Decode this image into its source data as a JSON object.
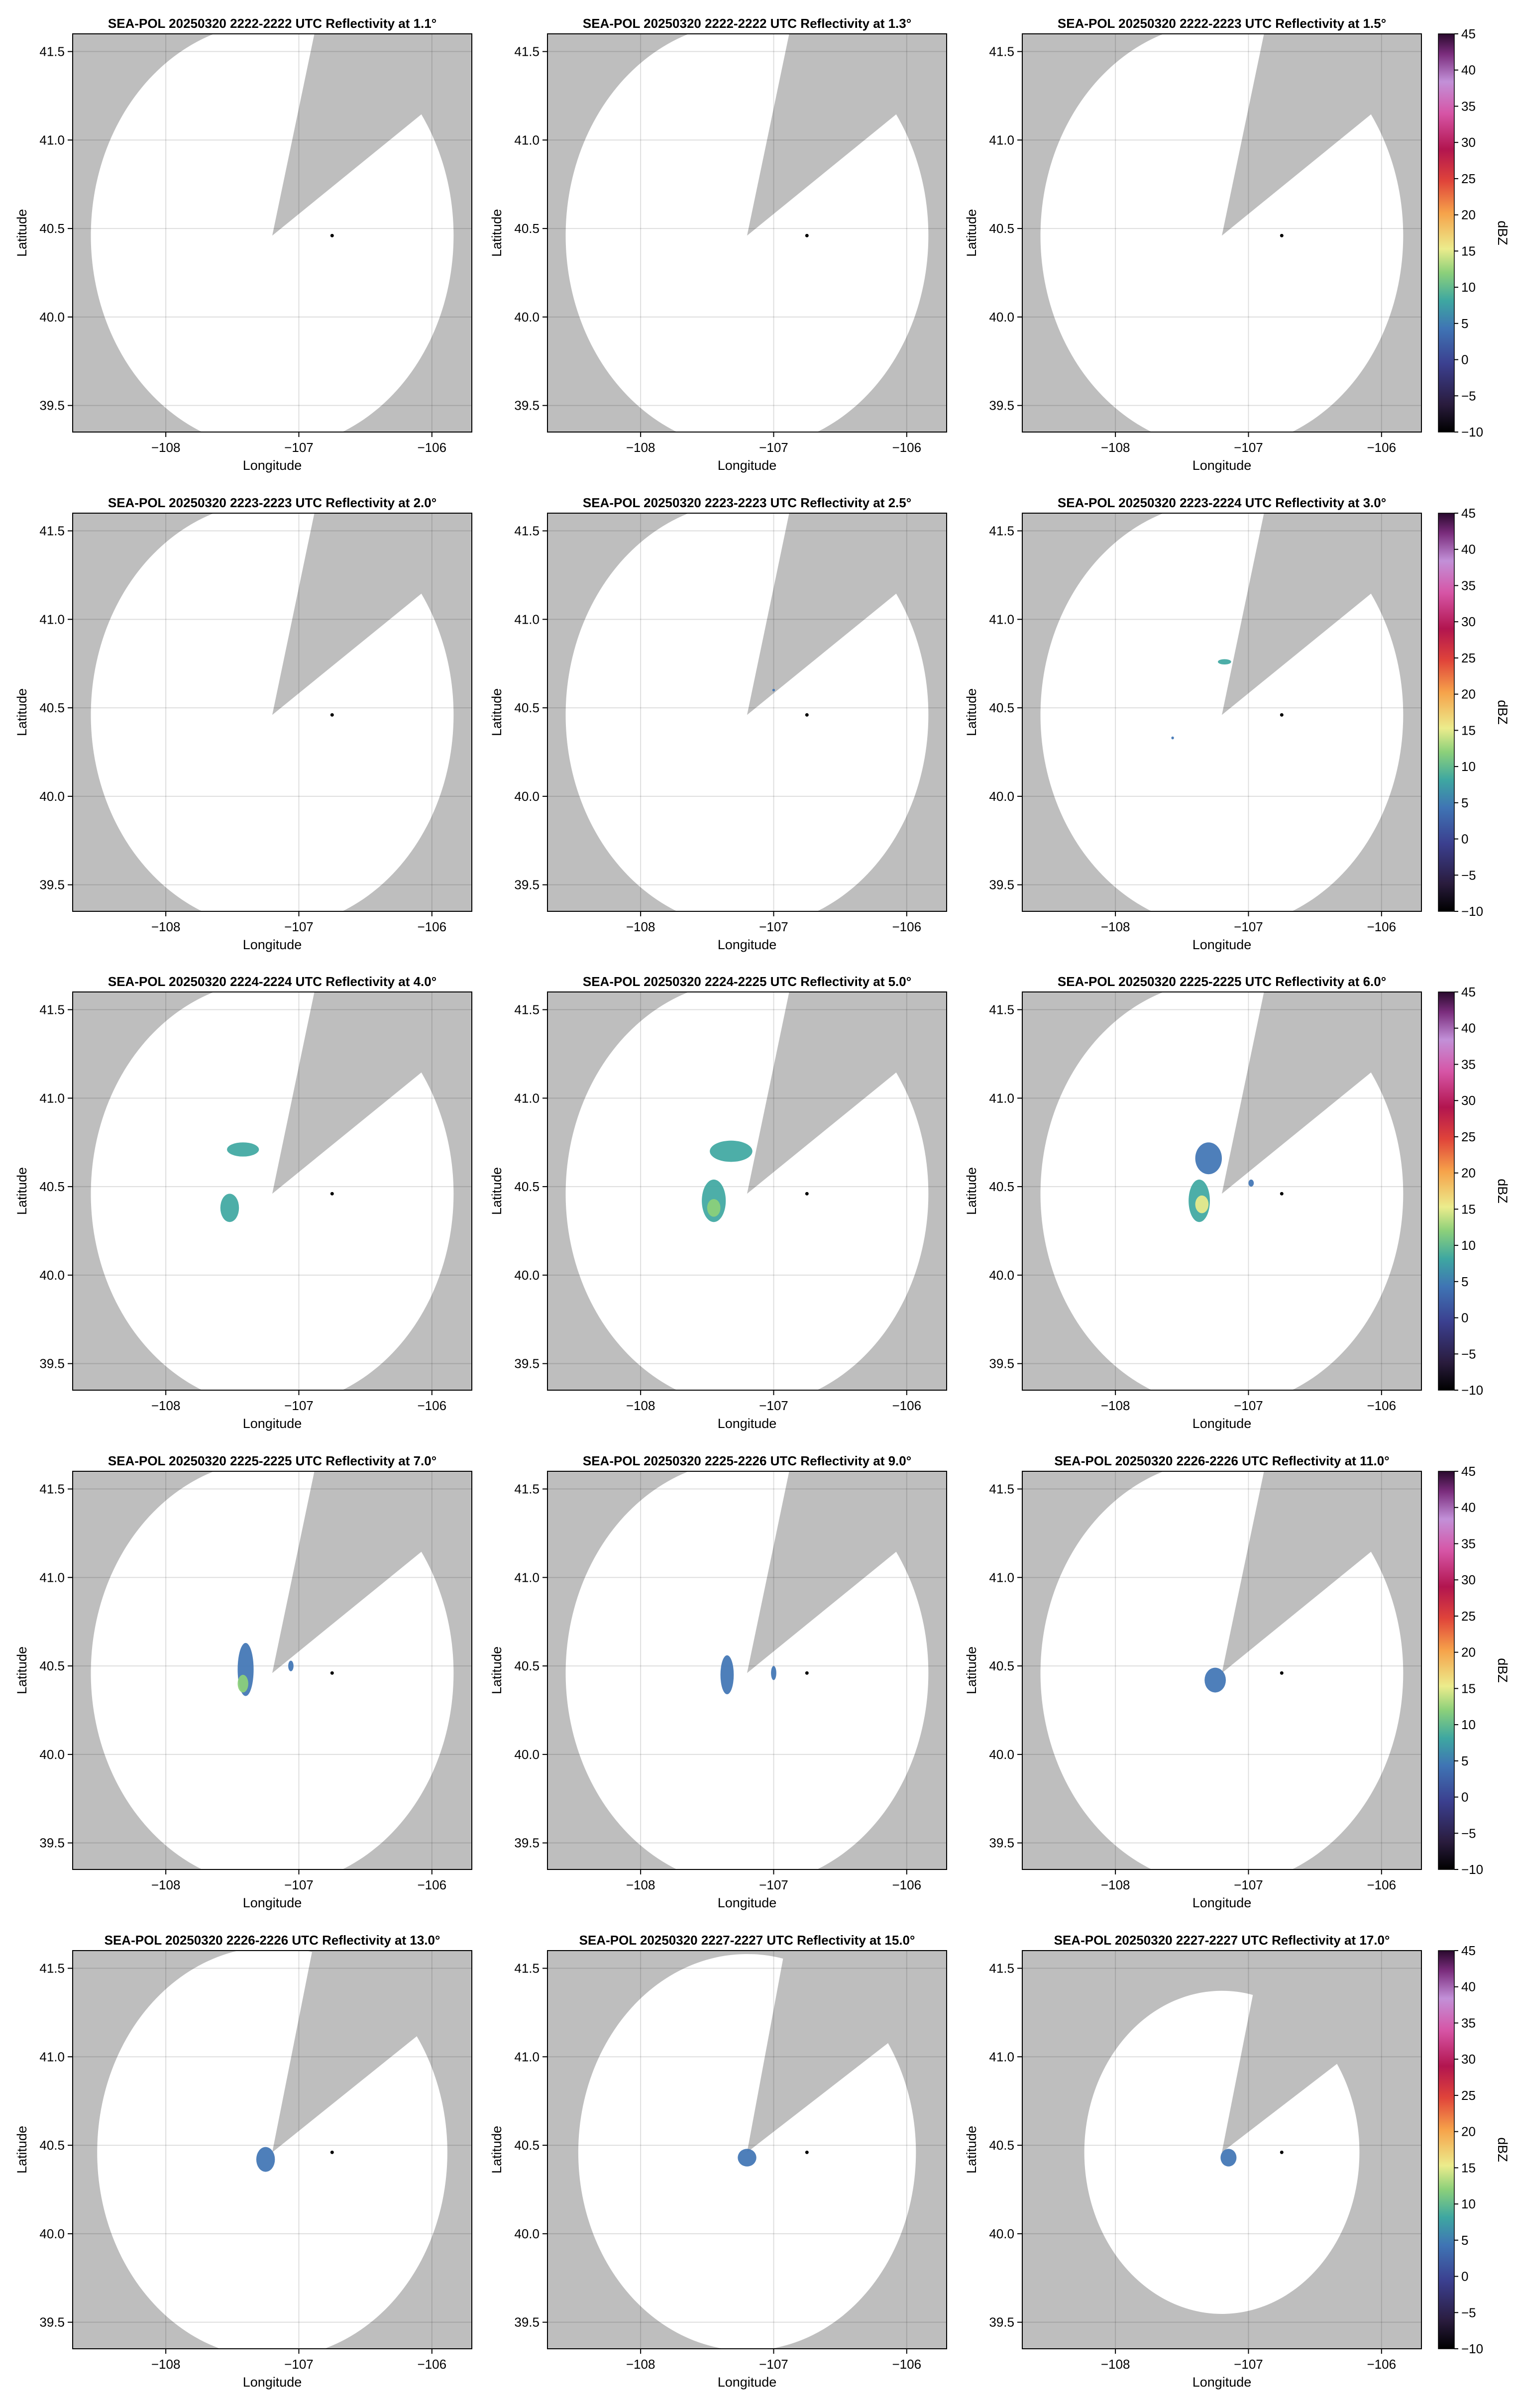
{
  "figure": {
    "xlabel": "Longitude",
    "ylabel": "Latitude",
    "xlim": [
      -108.7,
      -105.7
    ],
    "ylim": [
      39.35,
      41.6
    ],
    "x_ticks": [
      -108,
      -107,
      -106
    ],
    "y_ticks": [
      39.5,
      40.0,
      40.5,
      41.0,
      41.5
    ],
    "x_tick_labels": [
      "−108",
      "−107",
      "−106"
    ],
    "y_tick_labels": [
      "39.5",
      "40.0",
      "40.5",
      "41.0",
      "41.5"
    ],
    "grid": true,
    "background_color": "#bebebe",
    "coverage_color": "#ffffff",
    "station_marker": {
      "lon": -106.75,
      "lat": 40.46
    }
  },
  "colorbar": {
    "label": "dBZ",
    "min": -10,
    "max": 45,
    "ticks": [
      -10,
      -5,
      0,
      5,
      10,
      15,
      20,
      25,
      30,
      35,
      40,
      45
    ],
    "tick_labels": [
      "−10",
      "−5",
      "0",
      "5",
      "10",
      "15",
      "20",
      "25",
      "30",
      "35",
      "40",
      "45"
    ],
    "colors": [
      "#000000",
      "#2a1c3e",
      "#3b3f8f",
      "#3f74b4",
      "#3ea7a1",
      "#8cd07a",
      "#ecec8c",
      "#f6a24a",
      "#e0443a",
      "#b2154f",
      "#d655a6",
      "#c290d8",
      "#7a2c7c",
      "#2a0a2e"
    ]
  },
  "chart_data": [
    {
      "type": "heatmap",
      "title": "SEA-POL 20250320 2222-2222 UTC Reflectivity at 1.1°",
      "coverage": {
        "center": [
          -107.2,
          40.46
        ],
        "range_deg": 1.45,
        "blocked_sector": [
          [
            -106.9,
            41.54
          ],
          [
            -106.12,
            41.12
          ]
        ]
      },
      "echoes": []
    },
    {
      "type": "heatmap",
      "title": "SEA-POL 20250320 2222-2222 UTC Reflectivity at 1.3°",
      "coverage": {
        "center": [
          -107.2,
          40.46
        ],
        "range_deg": 1.45,
        "blocked_sector": [
          [
            -106.9,
            41.54
          ],
          [
            -106.12,
            41.12
          ]
        ]
      },
      "echoes": []
    },
    {
      "type": "heatmap",
      "title": "SEA-POL 20250320 2222-2223 UTC Reflectivity at 1.5°",
      "coverage": {
        "center": [
          -107.2,
          40.46
        ],
        "range_deg": 1.45,
        "blocked_sector": [
          [
            -106.9,
            41.54
          ],
          [
            -106.12,
            41.12
          ]
        ]
      },
      "echoes": []
    },
    {
      "type": "heatmap",
      "title": "SEA-POL 20250320 2223-2223 UTC Reflectivity at 2.0°",
      "coverage": {
        "center": [
          -107.2,
          40.46
        ],
        "range_deg": 1.45,
        "blocked_sector": [
          [
            -106.9,
            41.54
          ],
          [
            -106.12,
            41.12
          ]
        ]
      },
      "echoes": []
    },
    {
      "type": "heatmap",
      "title": "SEA-POL 20250320 2223-2223 UTC Reflectivity at 2.5°",
      "coverage": {
        "center": [
          -107.2,
          40.46
        ],
        "range_deg": 1.45,
        "blocked_sector": [
          [
            -106.9,
            41.54
          ],
          [
            -106.12,
            41.12
          ]
        ]
      },
      "echoes": [
        {
          "lon": -107.0,
          "lat": 40.6,
          "rx": 0.01,
          "ry": 0.006,
          "dbz": 2
        }
      ]
    },
    {
      "type": "heatmap",
      "title": "SEA-POL 20250320 2223-2224 UTC Reflectivity at 3.0°",
      "coverage": {
        "center": [
          -107.2,
          40.46
        ],
        "range_deg": 1.45,
        "blocked_sector": [
          [
            -106.9,
            41.54
          ],
          [
            -106.12,
            41.12
          ]
        ]
      },
      "echoes": [
        {
          "lon": -107.18,
          "lat": 40.76,
          "rx": 0.05,
          "ry": 0.015,
          "dbz": 5
        },
        {
          "lon": -107.57,
          "lat": 40.33,
          "rx": 0.01,
          "ry": 0.008,
          "dbz": 2
        }
      ]
    },
    {
      "type": "heatmap",
      "title": "SEA-POL 20250320 2224-2224 UTC Reflectivity at 4.0°",
      "coverage": {
        "center": [
          -107.2,
          40.46
        ],
        "range_deg": 1.45,
        "blocked_sector": [
          [
            -106.9,
            41.54
          ],
          [
            -106.12,
            41.12
          ]
        ]
      },
      "echoes": [
        {
          "lon": -107.42,
          "lat": 40.71,
          "rx": 0.12,
          "ry": 0.04,
          "dbz": 7
        },
        {
          "lon": -107.52,
          "lat": 40.38,
          "rx": 0.07,
          "ry": 0.08,
          "dbz": 6
        }
      ]
    },
    {
      "type": "heatmap",
      "title": "SEA-POL 20250320 2224-2225 UTC Reflectivity at 5.0°",
      "coverage": {
        "center": [
          -107.2,
          40.46
        ],
        "range_deg": 1.45,
        "blocked_sector": [
          [
            -106.9,
            41.54
          ],
          [
            -106.12,
            41.12
          ]
        ]
      },
      "echoes": [
        {
          "lon": -107.32,
          "lat": 40.7,
          "rx": 0.16,
          "ry": 0.06,
          "dbz": 5
        },
        {
          "lon": -107.45,
          "lat": 40.42,
          "rx": 0.09,
          "ry": 0.12,
          "dbz": 6
        },
        {
          "lon": -107.45,
          "lat": 40.38,
          "rx": 0.05,
          "ry": 0.05,
          "dbz": 13
        }
      ]
    },
    {
      "type": "heatmap",
      "title": "SEA-POL 20250320 2225-2225 UTC Reflectivity at 6.0°",
      "coverage": {
        "center": [
          -107.2,
          40.46
        ],
        "range_deg": 1.45,
        "blocked_sector": [
          [
            -106.9,
            41.54
          ],
          [
            -106.12,
            41.12
          ]
        ]
      },
      "echoes": [
        {
          "lon": -107.3,
          "lat": 40.66,
          "rx": 0.1,
          "ry": 0.09,
          "dbz": 3
        },
        {
          "lon": -107.37,
          "lat": 40.42,
          "rx": 0.08,
          "ry": 0.12,
          "dbz": 6
        },
        {
          "lon": -107.35,
          "lat": 40.4,
          "rx": 0.05,
          "ry": 0.05,
          "dbz": 14
        },
        {
          "lon": -106.98,
          "lat": 40.52,
          "rx": 0.02,
          "ry": 0.02,
          "dbz": 2
        }
      ]
    },
    {
      "type": "heatmap",
      "title": "SEA-POL 20250320 2225-2225 UTC Reflectivity at 7.0°",
      "coverage": {
        "center": [
          -107.2,
          40.46
        ],
        "range_deg": 1.45,
        "blocked_sector": [
          [
            -106.9,
            41.54
          ],
          [
            -106.12,
            41.12
          ]
        ]
      },
      "echoes": [
        {
          "lon": -107.4,
          "lat": 40.48,
          "rx": 0.06,
          "ry": 0.15,
          "dbz": 2
        },
        {
          "lon": -107.42,
          "lat": 40.4,
          "rx": 0.04,
          "ry": 0.05,
          "dbz": 12
        },
        {
          "lon": -107.06,
          "lat": 40.5,
          "rx": 0.02,
          "ry": 0.03,
          "dbz": 2
        }
      ]
    },
    {
      "type": "heatmap",
      "title": "SEA-POL 20250320 2225-2226 UTC Reflectivity at 9.0°",
      "coverage": {
        "center": [
          -107.2,
          40.46
        ],
        "range_deg": 1.45,
        "blocked_sector": [
          [
            -106.9,
            41.54
          ],
          [
            -106.12,
            41.12
          ]
        ]
      },
      "echoes": [
        {
          "lon": -107.35,
          "lat": 40.45,
          "rx": 0.05,
          "ry": 0.11,
          "dbz": 2
        },
        {
          "lon": -107.0,
          "lat": 40.46,
          "rx": 0.02,
          "ry": 0.04,
          "dbz": 2
        }
      ]
    },
    {
      "type": "heatmap",
      "title": "SEA-POL 20250320 2226-2226 UTC Reflectivity at 11.0°",
      "coverage": {
        "center": [
          -107.2,
          40.46
        ],
        "range_deg": 1.45,
        "blocked_sector": [
          [
            -106.9,
            41.54
          ],
          [
            -106.12,
            41.12
          ]
        ]
      },
      "echoes": [
        {
          "lon": -107.25,
          "lat": 40.42,
          "rx": 0.08,
          "ry": 0.07,
          "dbz": 2
        }
      ]
    },
    {
      "type": "heatmap",
      "title": "SEA-POL 20250320 2226-2226 UTC Reflectivity at 13.0°",
      "coverage": {
        "center": [
          -107.2,
          40.46
        ],
        "range_deg": 1.4,
        "blocked_sector": [
          [
            -106.92,
            41.52
          ],
          [
            -106.14,
            41.1
          ]
        ]
      },
      "echoes": [
        {
          "lon": -107.25,
          "lat": 40.42,
          "rx": 0.07,
          "ry": 0.07,
          "dbz": 2
        }
      ]
    },
    {
      "type": "heatmap",
      "title": "SEA-POL 20250320 2227-2227 UTC Reflectivity at 15.0°",
      "coverage": {
        "center": [
          -107.2,
          40.46
        ],
        "range_deg": 1.35,
        "blocked_sector": [
          [
            -106.95,
            41.47
          ],
          [
            -106.17,
            41.06
          ]
        ]
      },
      "echoes": [
        {
          "lon": -107.2,
          "lat": 40.43,
          "rx": 0.07,
          "ry": 0.05,
          "dbz": 2
        }
      ]
    },
    {
      "type": "heatmap",
      "title": "SEA-POL 20250320 2227-2227 UTC Reflectivity at 17.0°",
      "coverage": {
        "center": [
          -107.2,
          40.46
        ],
        "range_deg": 1.1,
        "blocked_sector": [
          [
            -106.98,
            41.3
          ],
          [
            -106.3,
            40.98
          ]
        ]
      },
      "echoes": [
        {
          "lon": -107.15,
          "lat": 40.43,
          "rx": 0.06,
          "ry": 0.05,
          "dbz": 2
        }
      ]
    }
  ]
}
